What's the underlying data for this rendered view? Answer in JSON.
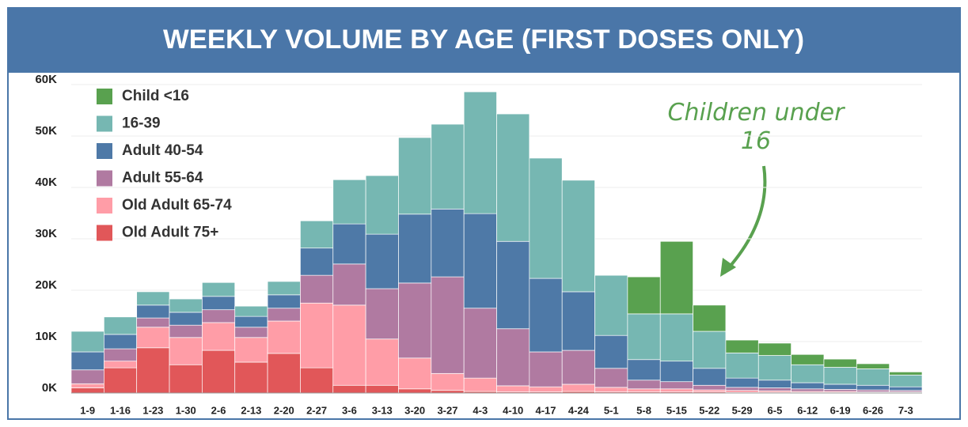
{
  "chart_data": {
    "type": "stacked_bar",
    "title": "WEEKLY VOLUME BY AGE (FIRST DOSES ONLY)",
    "annotation": "Children under 16",
    "categories": [
      "1-9",
      "1-16",
      "1-23",
      "1-30",
      "2-6",
      "2-13",
      "2-20",
      "2-27",
      "3-6",
      "3-13",
      "3-20",
      "3-27",
      "4-3",
      "4-10",
      "4-17",
      "4-24",
      "5-1",
      "5-8",
      "5-15",
      "5-22",
      "5-29",
      "6-5",
      "6-12",
      "6-19",
      "6-26",
      "7-3"
    ],
    "series": [
      {
        "name": "Old Adult 75+",
        "color": "#e15759",
        "values": [
          1000,
          4900,
          8800,
          5500,
          8300,
          6000,
          7700,
          4900,
          1500,
          1500,
          800,
          500,
          300,
          200,
          200,
          300,
          200,
          200,
          200,
          200,
          100,
          100,
          100,
          100,
          100,
          100
        ]
      },
      {
        "name": "Old Adult 65-74",
        "color": "#ff9da7",
        "values": [
          800,
          1300,
          4000,
          5300,
          5400,
          4800,
          6300,
          12600,
          15600,
          9000,
          6000,
          3300,
          2600,
          1200,
          1000,
          1400,
          900,
          600,
          600,
          400,
          400,
          300,
          200,
          200,
          100,
          100
        ]
      },
      {
        "name": "Adult 55-64",
        "color": "#b07aa1",
        "values": [
          2700,
          2400,
          1800,
          2400,
          2500,
          2000,
          2500,
          5400,
          8000,
          9800,
          14600,
          18800,
          13600,
          11100,
          6800,
          6600,
          3700,
          1700,
          1400,
          900,
          600,
          600,
          500,
          400,
          400,
          300
        ]
      },
      {
        "name": "Adult 40-54",
        "color": "#4e79a7",
        "values": [
          3500,
          2800,
          2500,
          2500,
          2600,
          2100,
          2600,
          5300,
          7800,
          10600,
          13400,
          13200,
          18400,
          17000,
          14300,
          11400,
          6400,
          4000,
          4000,
          3300,
          1800,
          1500,
          1200,
          1000,
          900,
          700
        ]
      },
      {
        "name": "16-39",
        "color": "#76b7b2",
        "values": [
          4000,
          3400,
          2600,
          2600,
          2700,
          2000,
          2600,
          5300,
          8600,
          11400,
          14900,
          16500,
          23700,
          24800,
          23400,
          21700,
          11700,
          8900,
          9200,
          7200,
          4900,
          4800,
          3500,
          3300,
          3200,
          2300
        ]
      },
      {
        "name": "Child <16",
        "color": "#59a14f",
        "values": [
          0,
          0,
          0,
          0,
          0,
          0,
          0,
          0,
          0,
          0,
          0,
          0,
          0,
          0,
          0,
          0,
          0,
          7200,
          14100,
          5100,
          2500,
          2400,
          2000,
          1600,
          1000,
          600
        ]
      }
    ],
    "ylim": [
      0,
      60000
    ],
    "yticks": [
      {
        "value": 0,
        "label": "0K"
      },
      {
        "value": 10000,
        "label": "10K"
      },
      {
        "value": 20000,
        "label": "20K"
      },
      {
        "value": 30000,
        "label": "30K"
      },
      {
        "value": 40000,
        "label": "40K"
      },
      {
        "value": 50000,
        "label": "50K"
      },
      {
        "value": 60000,
        "label": "60K"
      }
    ],
    "grid": true
  }
}
